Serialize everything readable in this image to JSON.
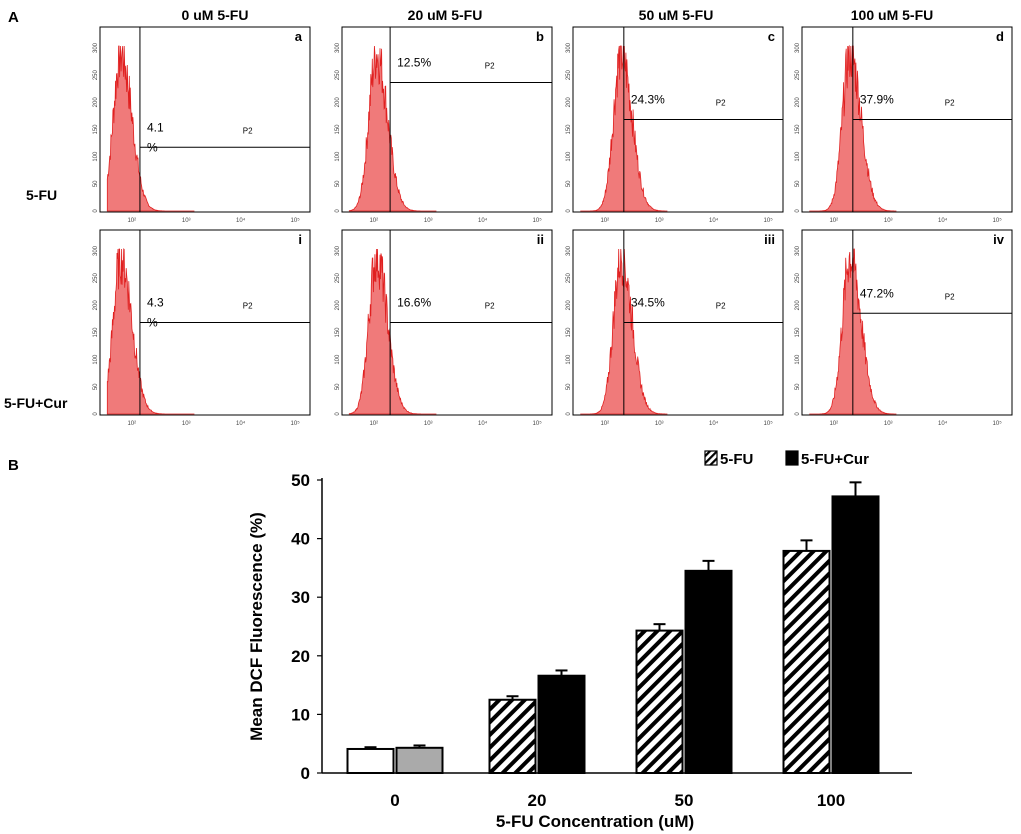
{
  "panel_a_label": "A",
  "panel_b_label": "B",
  "column_titles": [
    "0 uM 5-FU",
    "20 uM 5-FU",
    "50 uM 5-FU",
    "100 uM 5-FU"
  ],
  "row_labels": [
    "5-FU",
    "5-FU+Cur"
  ],
  "colors": {
    "histogram_fill": "#f07a7a",
    "histogram_stroke": "#e02020",
    "bar_black": "#000000",
    "bar_gray": "#aaaaaa"
  },
  "chart_data": [
    {
      "type": "histogram-grid",
      "gate_label": "P2",
      "x_tick_labels": [
        "10²",
        "10³",
        "10⁴",
        "10⁵"
      ],
      "y_tick_labels": [
        "0",
        "50",
        "100",
        "150",
        "200",
        "250",
        "300"
      ],
      "panels": [
        {
          "letter": "a",
          "row": 0,
          "col": 0,
          "percent_lines": [
            "4.1",
            "%"
          ],
          "peak_decade": 1.8,
          "gate_decade": 2.15,
          "gate_level_fraction": 0.35
        },
        {
          "letter": "b",
          "row": 0,
          "col": 1,
          "percent_lines": [
            "12.5%"
          ],
          "peak_decade": 2.05,
          "gate_decade": 2.3,
          "gate_level_fraction": 0.7
        },
        {
          "letter": "c",
          "row": 0,
          "col": 2,
          "percent_lines": [
            "24.3%"
          ],
          "peak_decade": 2.3,
          "gate_decade": 2.35,
          "gate_level_fraction": 0.5
        },
        {
          "letter": "d",
          "row": 0,
          "col": 3,
          "percent_lines": [
            "37.9%"
          ],
          "peak_decade": 2.3,
          "gate_decade": 2.35,
          "gate_level_fraction": 0.5
        },
        {
          "letter": "i",
          "row": 1,
          "col": 0,
          "percent_lines": [
            "4.3",
            "%"
          ],
          "peak_decade": 1.8,
          "gate_decade": 2.15,
          "gate_level_fraction": 0.5
        },
        {
          "letter": "ii",
          "row": 1,
          "col": 1,
          "percent_lines": [
            "16.6%"
          ],
          "peak_decade": 2.05,
          "gate_decade": 2.3,
          "gate_level_fraction": 0.5
        },
        {
          "letter": "iii",
          "row": 1,
          "col": 2,
          "percent_lines": [
            "34.5%"
          ],
          "peak_decade": 2.3,
          "gate_decade": 2.35,
          "gate_level_fraction": 0.5
        },
        {
          "letter": "iv",
          "row": 1,
          "col": 3,
          "percent_lines": [
            "47.2%"
          ],
          "peak_decade": 2.3,
          "gate_decade": 2.35,
          "gate_level_fraction": 0.55
        }
      ]
    },
    {
      "type": "bar",
      "title": "",
      "xlabel": "5-FU Concentration (uM)",
      "ylabel": "Mean DCF Fluorescence    (%)",
      "categories": [
        "0",
        "20",
        "50",
        "100"
      ],
      "ylim": [
        0,
        50
      ],
      "yticks": [
        0,
        10,
        20,
        30,
        40,
        50
      ],
      "legend_position": "top-right",
      "series": [
        {
          "name": "5-FU",
          "pattern": "hatched",
          "values": [
            4.1,
            12.5,
            24.3,
            37.9
          ],
          "errors": [
            0.3,
            0.6,
            1.1,
            1.8
          ]
        },
        {
          "name": "5-FU+Cur",
          "pattern": "solid",
          "values": [
            4.3,
            16.6,
            34.5,
            47.2
          ],
          "errors": [
            0.4,
            0.9,
            1.7,
            2.4
          ]
        }
      ],
      "first_group_styles": [
        "white",
        "gray"
      ]
    }
  ]
}
